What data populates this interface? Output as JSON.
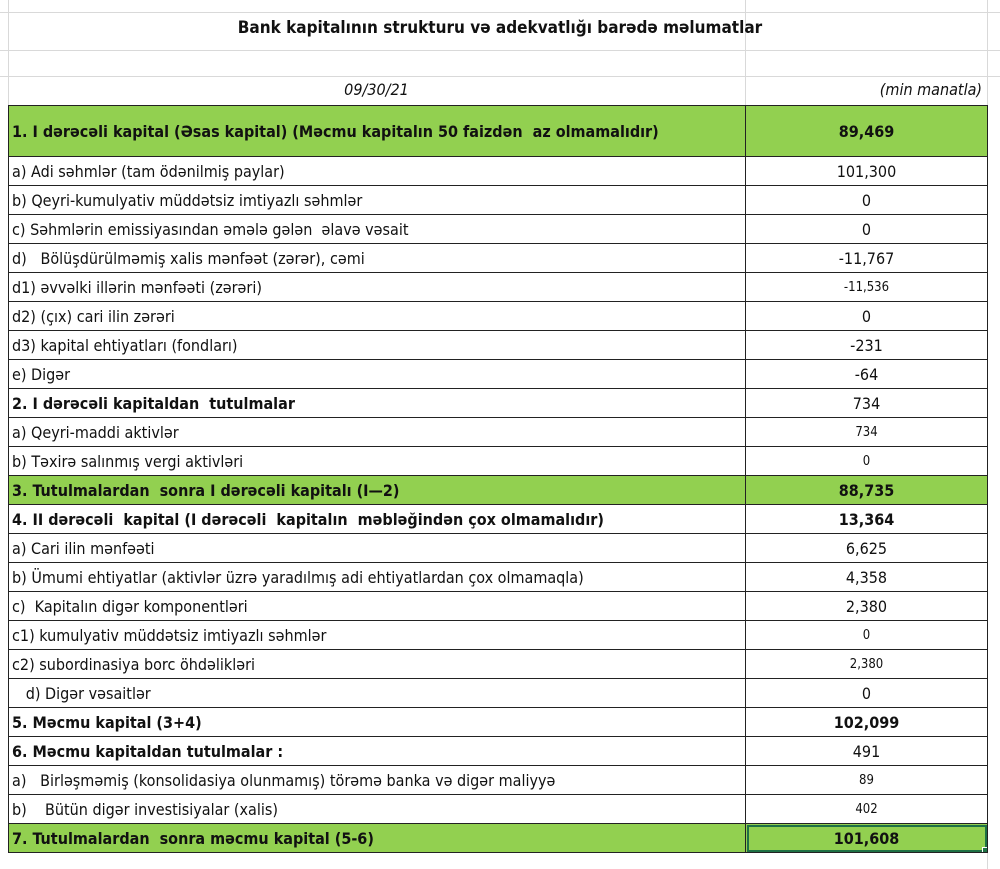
{
  "title": "Bank kapitalının strukturu və adekvatlığı barədə məlumatlar",
  "date": "09/30/21",
  "unit": "(min manatla)",
  "colors": {
    "highlight": "#92d050",
    "selection": "#1e7145"
  },
  "rows": [
    {
      "label": "1. I dərəcəli kapital (Əsas kapital) (Məcmu kapitalın 50 faizdən  az olmamalıdır)",
      "value": "89,469",
      "bold": true,
      "green": true
    },
    {
      "label": "a) Adi səhmlər (tam ödənilmiş paylar)",
      "value": "101,300"
    },
    {
      "label": "b) Qeyri-kumulyativ müddətsiz imtiyazlı səhmlər",
      "value": "0"
    },
    {
      "label": "c) Səhmlərin emissiyasından əmələ gələn  əlavə vəsait",
      "value": "0"
    },
    {
      "label": "d)   Bölüşdürülməmiş xalis mənfəət (zərər), cəmi",
      "value": "-11,767"
    },
    {
      "label": "d1) əvvəlki illərin mənfəəti (zərəri)",
      "value": "-11,536",
      "small": true
    },
    {
      "label": "d2) (çıx) cari ilin zərəri",
      "value": "0"
    },
    {
      "label": "d3) kapital ehtiyatları (fondları)",
      "value": "-231"
    },
    {
      "label": "e) Digər",
      "value": "-64"
    },
    {
      "label": "2. I dərəcəli kapitaldan  tutulmalar",
      "value": "734",
      "boldLabel": true
    },
    {
      "label": "a) Qeyri-maddi aktivlər",
      "value": "734",
      "small": true
    },
    {
      "label": "b) Təxirə salınmış vergi aktivləri",
      "value": "0",
      "small": true
    },
    {
      "label": "3. Tutulmalardan  sonra I dərəcəli kapitalı (I—2)",
      "value": "88,735",
      "bold": true,
      "green": true
    },
    {
      "label": "4. II dərəcəli  kapital (I dərəcəli  kapitalın  məbləğindən çox olmamalıdır)",
      "value": "13,364",
      "bold": true
    },
    {
      "label": "a) Cari ilin mənfəəti",
      "value": "6,625"
    },
    {
      "label": "b) Ümumi ehtiyatlar (aktivlər üzrə yaradılmış adi ehtiyatlardan çox olmamaqla)",
      "value": "4,358"
    },
    {
      "label": "c)  Kapitalın digər komponentləri",
      "value": "2,380"
    },
    {
      "label": "c1) kumulyativ müddətsiz imtiyazlı səhmlər",
      "value": "0",
      "small": true
    },
    {
      "label": "c2) subordinasiya borc öhdəlikləri",
      "value": "2,380",
      "small": true
    },
    {
      "label": "   d) Digər vəsaitlər",
      "value": "0"
    },
    {
      "label": "5. Məcmu kapital (3+4)",
      "value": "102,099",
      "bold": true
    },
    {
      "label": "6. Məcmu kapitaldan tutulmalar :",
      "value": "491",
      "boldLabel": true
    },
    {
      "label": "a)   Birləşməmiş (konsolidasiya olunmamış) törəmə banka və digər maliyyə",
      "value": "89",
      "small": true
    },
    {
      "label": "b)    Bütün digər investisiyalar (xalis)",
      "value": "402",
      "small": true
    },
    {
      "label": "7. Tutulmalardan  sonra məcmu kapital (5-6)",
      "value": "101,608",
      "bold": true,
      "green": true,
      "selected": true
    }
  ]
}
